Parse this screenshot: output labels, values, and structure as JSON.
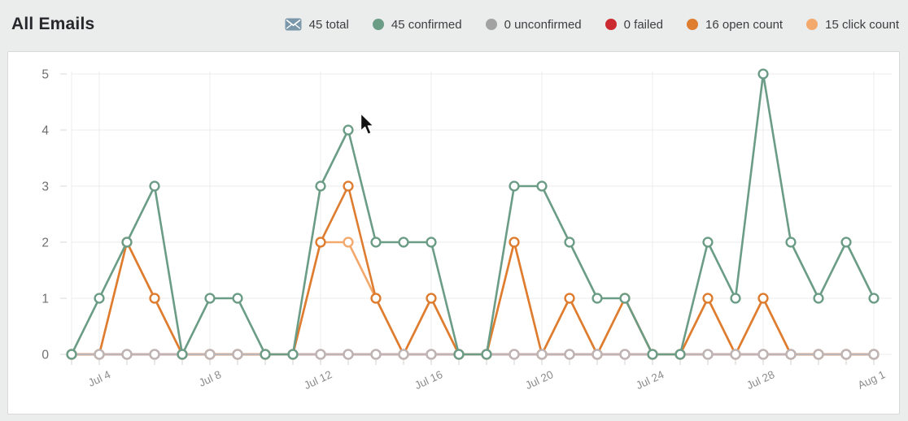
{
  "page": {
    "title": "All Emails"
  },
  "legend": {
    "items": [
      {
        "id": "total",
        "label": "45 total",
        "icon": "envelope-icon",
        "color": "#7b97aa"
      },
      {
        "id": "confirmed",
        "label": "45 confirmed",
        "icon": "dot",
        "color": "#6b9c86"
      },
      {
        "id": "unconfirmed",
        "label": "0 unconfirmed",
        "icon": "dot",
        "color": "#a2a2a2"
      },
      {
        "id": "failed",
        "label": "0 failed",
        "icon": "dot",
        "color": "#cb2b30"
      },
      {
        "id": "open_count",
        "label": "16 open count",
        "icon": "dot",
        "color": "#de7c2f"
      },
      {
        "id": "click_count",
        "label": "15 click count",
        "icon": "dot",
        "color": "#f4a96c"
      }
    ]
  },
  "chart_data": {
    "type": "line",
    "title": "All Emails over time",
    "x": [
      "Jul 3",
      "Jul 4",
      "Jul 5",
      "Jul 6",
      "Jul 7",
      "Jul 8",
      "Jul 9",
      "Jul 10",
      "Jul 11",
      "Jul 12",
      "Jul 13",
      "Jul 14",
      "Jul 15",
      "Jul 16",
      "Jul 17",
      "Jul 18",
      "Jul 19",
      "Jul 20",
      "Jul 21",
      "Jul 22",
      "Jul 23",
      "Jul 24",
      "Jul 25",
      "Jul 26",
      "Jul 27",
      "Jul 28",
      "Jul 29",
      "Jul 30",
      "Jul 31",
      "Aug 1"
    ],
    "x_tick_indices": [
      1,
      5,
      9,
      13,
      17,
      21,
      25,
      29
    ],
    "ylim": [
      0,
      5
    ],
    "yticks": [
      0,
      1,
      2,
      3,
      4,
      5
    ],
    "grid": true,
    "legend_position": "top",
    "marker": "circle-white-fill",
    "series": [
      {
        "id": "failed",
        "name": "failed",
        "total": 0,
        "color": "#cb2b30",
        "values": [
          0,
          0,
          0,
          0,
          0,
          0,
          0,
          0,
          0,
          0,
          0,
          0,
          0,
          0,
          0,
          0,
          0,
          0,
          0,
          0,
          0,
          0,
          0,
          0,
          0,
          0,
          0,
          0,
          0,
          0
        ]
      },
      {
        "id": "click_count",
        "name": "click count",
        "total": 15,
        "color": "#f4a96c",
        "values": [
          0,
          0,
          2,
          1,
          0,
          0,
          0,
          0,
          0,
          2,
          2,
          1,
          0,
          1,
          0,
          0,
          2,
          0,
          1,
          0,
          1,
          0,
          0,
          1,
          0,
          1,
          0,
          0,
          0,
          0
        ]
      },
      {
        "id": "open_count",
        "name": "open count",
        "total": 16,
        "color": "#de7c2f",
        "values": [
          0,
          0,
          2,
          1,
          0,
          0,
          0,
          0,
          0,
          2,
          3,
          1,
          0,
          1,
          0,
          0,
          2,
          0,
          1,
          0,
          1,
          0,
          0,
          1,
          0,
          1,
          0,
          0,
          0,
          0
        ]
      },
      {
        "id": "unconfirmed",
        "name": "unconfirmed",
        "total": 0,
        "color": "#bdb5b5",
        "values": [
          0,
          0,
          0,
          0,
          0,
          0,
          0,
          0,
          0,
          0,
          0,
          0,
          0,
          0,
          0,
          0,
          0,
          0,
          0,
          0,
          0,
          0,
          0,
          0,
          0,
          0,
          0,
          0,
          0,
          0
        ]
      },
      {
        "id": "confirmed",
        "name": "confirmed",
        "total": 45,
        "color": "#6b9c86",
        "values": [
          0,
          1,
          2,
          3,
          0,
          1,
          1,
          0,
          0,
          3,
          4,
          2,
          2,
          2,
          0,
          0,
          3,
          3,
          2,
          1,
          1,
          0,
          0,
          2,
          1,
          5,
          2,
          1,
          2,
          1
        ]
      }
    ]
  }
}
